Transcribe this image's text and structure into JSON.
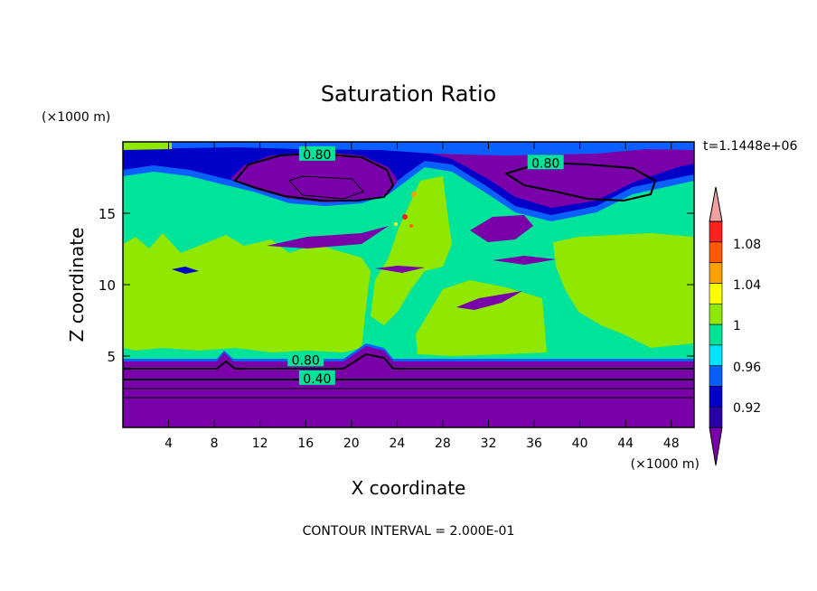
{
  "chart_data": {
    "type": "heatmap",
    "title": "Saturation Ratio",
    "xlabel": "X coordinate",
    "ylabel": "Z coordinate",
    "x_units": "(×1000 m)",
    "y_units": "(×1000 m)",
    "time_label": "t=1.1448e+06",
    "footer": "CONTOUR INTERVAL = 2.000E-01",
    "xlim": [
      0,
      50
    ],
    "ylim": [
      0,
      20
    ],
    "x_ticks": [
      "4",
      "8",
      "12",
      "16",
      "20",
      "24",
      "28",
      "32",
      "36",
      "40",
      "44",
      "48"
    ],
    "x_tick_values": [
      4,
      8,
      12,
      16,
      20,
      24,
      28,
      32,
      36,
      40,
      44,
      48
    ],
    "y_ticks": [
      "5",
      "10",
      "15"
    ],
    "y_tick_values": [
      5,
      10,
      15
    ],
    "contour_labels": [
      {
        "text": "0.80",
        "x": 17,
        "z": 19.0
      },
      {
        "text": "0.80",
        "x": 37,
        "z": 18.4
      },
      {
        "text": "0.80",
        "x": 16,
        "z": 4.6
      },
      {
        "text": "0.40",
        "x": 17,
        "z": 3.3
      }
    ],
    "colorbar": {
      "labels": [
        "1.08",
        "1.04",
        "1",
        "0.96",
        "0.92"
      ],
      "colors": [
        "#7a00aa",
        "#2a00a8",
        "#0000c8",
        "#0a60ff",
        "#00e5ff",
        "#00e39a",
        "#90e800",
        "#ffff00",
        "#ffa000",
        "#ff5a00",
        "#ff2020",
        "#f0a0a0"
      ]
    }
  }
}
